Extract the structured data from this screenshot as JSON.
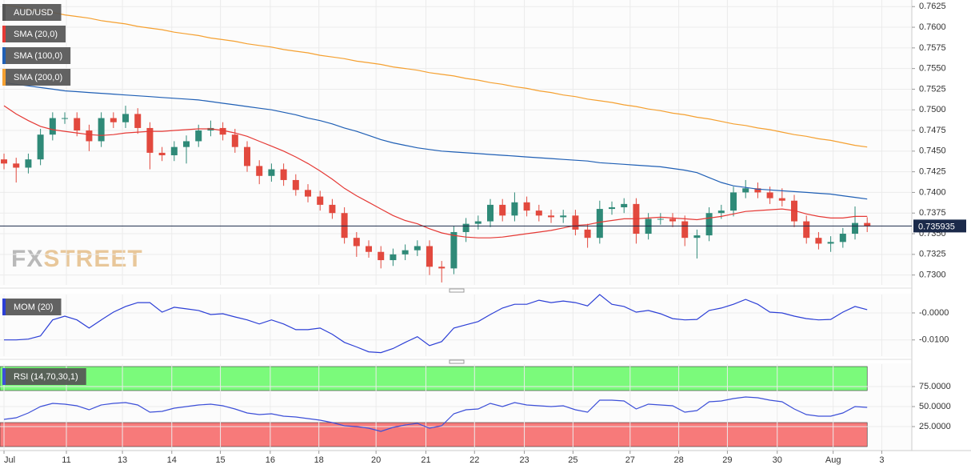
{
  "watermark": [
    "FX",
    "STREET"
  ],
  "chart_data": [
    {
      "type": "candlestick",
      "xlim": [
        -0.33,
        74.67
      ],
      "ylim": [
        0.7288,
        0.7633
      ],
      "yticks": [
        0.7625,
        {
          "value": 0.76,
          "label": "0.7600"
        },
        0.7575,
        {
          "value": 0.755,
          "label": "0.7550"
        },
        0.7525,
        {
          "value": 0.75,
          "label": "0.7500"
        },
        0.7475,
        {
          "value": 0.745,
          "label": "0.7450"
        },
        0.7425,
        {
          "value": 0.74,
          "label": "0.7400"
        },
        0.7375,
        {
          "value": 0.735,
          "label": "0.7350"
        },
        0.7325,
        {
          "value": 0.73,
          "label": "0.7300"
        }
      ],
      "grid": true,
      "last_price": 0.735935,
      "series": [
        {
          "name": "AUD/USD",
          "color": "#555555",
          "color_up": "#2f8a78",
          "color_down": "#e2493e",
          "open": [
            0.744,
            0.7435,
            0.743,
            0.744,
            0.747,
            0.749,
            0.749,
            0.7475,
            0.7462,
            0.749,
            0.7485,
            0.7495,
            0.7478,
            0.7448,
            0.7445,
            0.7455,
            0.7462,
            0.7475,
            0.7478,
            0.747,
            0.7455,
            0.7432,
            0.742,
            0.7428,
            0.7415,
            0.7403,
            0.7395,
            0.7385,
            0.7375,
            0.7345,
            0.7335,
            0.7328,
            0.7318,
            0.7325,
            0.733,
            0.7335,
            0.731,
            0.7308,
            0.7352,
            0.7362,
            0.7365,
            0.7385,
            0.7372,
            0.7388,
            0.7378,
            0.7372,
            0.737,
            0.7372,
            0.7355,
            0.7345,
            0.738,
            0.7382,
            0.7386,
            0.735,
            0.7368,
            0.7368,
            0.7365,
            0.7345,
            0.7348,
            0.7375,
            0.7378,
            0.74,
            0.7405,
            0.74,
            0.7393,
            0.739,
            0.7365,
            0.7345,
            0.7338,
            0.734,
            0.735,
            0.7363
          ],
          "high": [
            0.7447,
            0.7442,
            0.7447,
            0.7477,
            0.7497,
            0.7497,
            0.7497,
            0.7482,
            0.7497,
            0.7497,
            0.7505,
            0.7502,
            0.7485,
            0.7455,
            0.7462,
            0.7469,
            0.7482,
            0.7487,
            0.7485,
            0.7477,
            0.7462,
            0.7439,
            0.7435,
            0.7435,
            0.7422,
            0.741,
            0.7402,
            0.7392,
            0.7382,
            0.7352,
            0.7342,
            0.7335,
            0.7332,
            0.7337,
            0.7342,
            0.7342,
            0.7317,
            0.7359,
            0.7369,
            0.7372,
            0.7392,
            0.7392,
            0.74,
            0.7395,
            0.7385,
            0.7379,
            0.7379,
            0.7379,
            0.7362,
            0.739,
            0.7389,
            0.7393,
            0.7393,
            0.7375,
            0.7375,
            0.7375,
            0.7372,
            0.7355,
            0.7382,
            0.7385,
            0.7407,
            0.7415,
            0.7412,
            0.7407,
            0.7405,
            0.7397,
            0.7372,
            0.7352,
            0.7347,
            0.7357,
            0.7383,
            0.737
          ],
          "low": [
            0.7428,
            0.7412,
            0.7423,
            0.7433,
            0.7463,
            0.7483,
            0.7468,
            0.745,
            0.7455,
            0.7478,
            0.7478,
            0.7471,
            0.7428,
            0.7438,
            0.7438,
            0.7435,
            0.7455,
            0.7468,
            0.7463,
            0.7448,
            0.7425,
            0.741,
            0.7413,
            0.7408,
            0.7396,
            0.7388,
            0.7378,
            0.7368,
            0.7338,
            0.7322,
            0.7321,
            0.7308,
            0.7311,
            0.7318,
            0.7323,
            0.73,
            0.7291,
            0.7301,
            0.734,
            0.7355,
            0.7358,
            0.7365,
            0.7365,
            0.7371,
            0.7365,
            0.7363,
            0.7363,
            0.7348,
            0.7333,
            0.7338,
            0.7373,
            0.7375,
            0.7338,
            0.7343,
            0.7361,
            0.7358,
            0.7335,
            0.732,
            0.7341,
            0.7368,
            0.7371,
            0.7393,
            0.7393,
            0.7386,
            0.7383,
            0.7358,
            0.7338,
            0.7331,
            0.7328,
            0.7333,
            0.7343,
            0.7352
          ],
          "close": [
            0.7435,
            0.743,
            0.744,
            0.747,
            0.749,
            0.749,
            0.7475,
            0.7462,
            0.749,
            0.7485,
            0.7495,
            0.7478,
            0.7448,
            0.7445,
            0.7455,
            0.7462,
            0.7475,
            0.7478,
            0.747,
            0.7455,
            0.7432,
            0.742,
            0.7428,
            0.7415,
            0.7403,
            0.7395,
            0.7385,
            0.7375,
            0.7345,
            0.7335,
            0.7328,
            0.7318,
            0.7325,
            0.733,
            0.7335,
            0.731,
            0.7308,
            0.7352,
            0.7362,
            0.7365,
            0.7385,
            0.7372,
            0.7388,
            0.7378,
            0.7372,
            0.737,
            0.7372,
            0.7355,
            0.7345,
            0.738,
            0.7382,
            0.7386,
            0.735,
            0.7368,
            0.7368,
            0.7365,
            0.7345,
            0.7348,
            0.7375,
            0.7378,
            0.74,
            0.7405,
            0.74,
            0.7393,
            0.739,
            0.7365,
            0.7345,
            0.7338,
            0.734,
            0.735,
            0.7363,
            0.7359
          ]
        },
        {
          "name": "SMA (20,0)",
          "color": "#e53935",
          "values": [
            0.7505,
            0.7495,
            0.7487,
            0.748,
            0.7476,
            0.7474,
            0.7472,
            0.747,
            0.7469,
            0.747,
            0.7472,
            0.7473,
            0.7474,
            0.7474,
            0.7475,
            0.7476,
            0.7477,
            0.7477,
            0.7475,
            0.7472,
            0.7468,
            0.7462,
            0.7456,
            0.745,
            0.7443,
            0.7435,
            0.7426,
            0.7416,
            0.7405,
            0.7396,
            0.7388,
            0.738,
            0.7372,
            0.7366,
            0.7362,
            0.7356,
            0.7351,
            0.7348,
            0.7346,
            0.7345,
            0.7345,
            0.7346,
            0.7348,
            0.735,
            0.7352,
            0.7354,
            0.7357,
            0.736,
            0.7361,
            0.7364,
            0.7366,
            0.7368,
            0.7368,
            0.7369,
            0.737,
            0.7369,
            0.7368,
            0.7367,
            0.7369,
            0.7371,
            0.7374,
            0.7377,
            0.7378,
            0.7379,
            0.738,
            0.7378,
            0.7374,
            0.7371,
            0.7369,
            0.7369,
            0.7371,
            0.7371
          ]
        },
        {
          "name": "SMA (100,0)",
          "color": "#1f5fb5",
          "values": [
            0.7533,
            0.7531,
            0.7529,
            0.7527,
            0.7525,
            0.7523,
            0.7522,
            0.7521,
            0.752,
            0.7519,
            0.7518,
            0.7517,
            0.7516,
            0.7515,
            0.7514,
            0.7513,
            0.7512,
            0.751,
            0.7508,
            0.7506,
            0.7504,
            0.7502,
            0.75,
            0.7497,
            0.7494,
            0.749,
            0.7487,
            0.7483,
            0.7478,
            0.7474,
            0.7469,
            0.7464,
            0.746,
            0.7457,
            0.7454,
            0.7452,
            0.745,
            0.7449,
            0.7448,
            0.7447,
            0.7446,
            0.7445,
            0.7444,
            0.7443,
            0.7442,
            0.7441,
            0.744,
            0.7439,
            0.7438,
            0.7436,
            0.7435,
            0.7434,
            0.7433,
            0.7432,
            0.7431,
            0.7429,
            0.7427,
            0.7424,
            0.7418,
            0.7412,
            0.7408,
            0.7406,
            0.7404,
            0.7403,
            0.7402,
            0.7401,
            0.74,
            0.7399,
            0.7398,
            0.7396,
            0.7394,
            0.7392
          ]
        },
        {
          "name": "SMA (200,0)",
          "color": "#f5a030",
          "values": [
            0.7627,
            0.7625,
            0.7622,
            0.762,
            0.7618,
            0.7615,
            0.7613,
            0.7611,
            0.7608,
            0.7606,
            0.7604,
            0.7601,
            0.7599,
            0.7597,
            0.7594,
            0.7592,
            0.759,
            0.7587,
            0.7585,
            0.7583,
            0.758,
            0.7578,
            0.7576,
            0.7573,
            0.7571,
            0.7569,
            0.7566,
            0.7564,
            0.7562,
            0.7559,
            0.7557,
            0.7555,
            0.7552,
            0.755,
            0.7548,
            0.7545,
            0.7543,
            0.7541,
            0.7538,
            0.7536,
            0.7533,
            0.7531,
            0.7528,
            0.7526,
            0.7523,
            0.7521,
            0.7518,
            0.7516,
            0.7513,
            0.7511,
            0.7509,
            0.7506,
            0.7504,
            0.7501,
            0.7499,
            0.7496,
            0.7494,
            0.7491,
            0.7489,
            0.7486,
            0.7483,
            0.7481,
            0.7478,
            0.7476,
            0.7473,
            0.747,
            0.7468,
            0.7465,
            0.7463,
            0.746,
            0.7457,
            0.7455
          ]
        }
      ]
    },
    {
      "type": "line",
      "xlim": [
        -0.33,
        74.67
      ],
      "ylim": [
        -0.016,
        0.0068
      ],
      "yticks": [
        {
          "value": 0,
          "label": "-0.0000"
        },
        {
          "value": -0.01,
          "label": "-0.0100"
        }
      ],
      "grid": true,
      "series": [
        {
          "name": "MOM (20)",
          "color": "#2c3fd6",
          "values": [
            -0.01,
            -0.01,
            -0.0097,
            -0.0085,
            -0.0026,
            -0.0012,
            -0.0026,
            -0.0056,
            -0.0026,
            0.0003,
            0.0024,
            0.0038,
            0.0038,
            0.0003,
            0.0021,
            0.0015,
            0.0009,
            -0.0006,
            -0.0003,
            -0.0015,
            -0.0026,
            -0.0041,
            -0.0026,
            -0.0041,
            -0.0062,
            -0.0062,
            -0.0056,
            -0.0079,
            -0.0109,
            -0.0126,
            -0.0144,
            -0.0147,
            -0.0132,
            -0.0109,
            -0.0088,
            -0.0121,
            -0.0106,
            -0.0056,
            -0.0044,
            -0.0032,
            -0.0006,
            0.0018,
            0.0032,
            0.0032,
            0.0047,
            0.0038,
            0.0044,
            0.0038,
            0.0026,
            0.0068,
            0.0032,
            0.0024,
            0.0003,
            0.0009,
            -0.0003,
            -0.0021,
            -0.0026,
            -0.0024,
            0.0009,
            0.0018,
            0.0032,
            0.005,
            0.0032,
            0.0003,
            0.0,
            -0.0012,
            -0.0021,
            -0.0026,
            -0.0024,
            0.0003,
            0.0024,
            0.0012
          ]
        }
      ]
    },
    {
      "type": "line",
      "xlim": [
        -0.33,
        74.67
      ],
      "ylim": [
        -4,
        103
      ],
      "yticks": [
        {
          "value": 75,
          "label": "75.0000"
        },
        {
          "value": 50,
          "label": "50.0000"
        },
        {
          "value": 25,
          "label": "25.0000"
        }
      ],
      "xticks": [
        {
          "value": 0,
          "label": "Jul"
        },
        {
          "value": 5.13,
          "label": "11"
        },
        {
          "value": 9.74,
          "label": "13"
        },
        {
          "value": 13.8,
          "label": "14"
        },
        {
          "value": 17.8,
          "label": "15"
        },
        {
          "value": 21.9,
          "label": "16"
        },
        {
          "value": 25.9,
          "label": "18"
        },
        {
          "value": 30.6,
          "label": "20"
        },
        {
          "value": 34.7,
          "label": "21"
        },
        {
          "value": 38.7,
          "label": "22"
        },
        {
          "value": 42.8,
          "label": "23"
        },
        {
          "value": 46.8,
          "label": "25"
        },
        {
          "value": 51.5,
          "label": "27"
        },
        {
          "value": 55.5,
          "label": "28"
        },
        {
          "value": 59.5,
          "label": "29"
        },
        {
          "value": 63.6,
          "label": "30"
        },
        {
          "value": 68.2,
          "label": "Aug"
        },
        {
          "value": 72.2,
          "label": "3"
        }
      ],
      "grid": true,
      "bands": [
        {
          "from": 70,
          "to": 100,
          "color": "#7bfa7b"
        },
        {
          "from": 0,
          "to": 30,
          "color": "#f77a7a"
        }
      ],
      "series": [
        {
          "name": "RSI (14,70,30,1)",
          "color": "#3c4fd8",
          "values": [
            34,
            36,
            42,
            50,
            54,
            53,
            51,
            46,
            52,
            54,
            55,
            52,
            43,
            44,
            48,
            50,
            52,
            53,
            51,
            47,
            42,
            40,
            41,
            38,
            37,
            35,
            33,
            30,
            26,
            25,
            23,
            19,
            24,
            27,
            29,
            23,
            26,
            41,
            46,
            47,
            54,
            50,
            55,
            52,
            51,
            50,
            51,
            46,
            43,
            58,
            58,
            57,
            47,
            53,
            52,
            51,
            43,
            45,
            56,
            57,
            60,
            62,
            61,
            58,
            56,
            47,
            40,
            38,
            38,
            42,
            50,
            49
          ]
        }
      ]
    }
  ]
}
